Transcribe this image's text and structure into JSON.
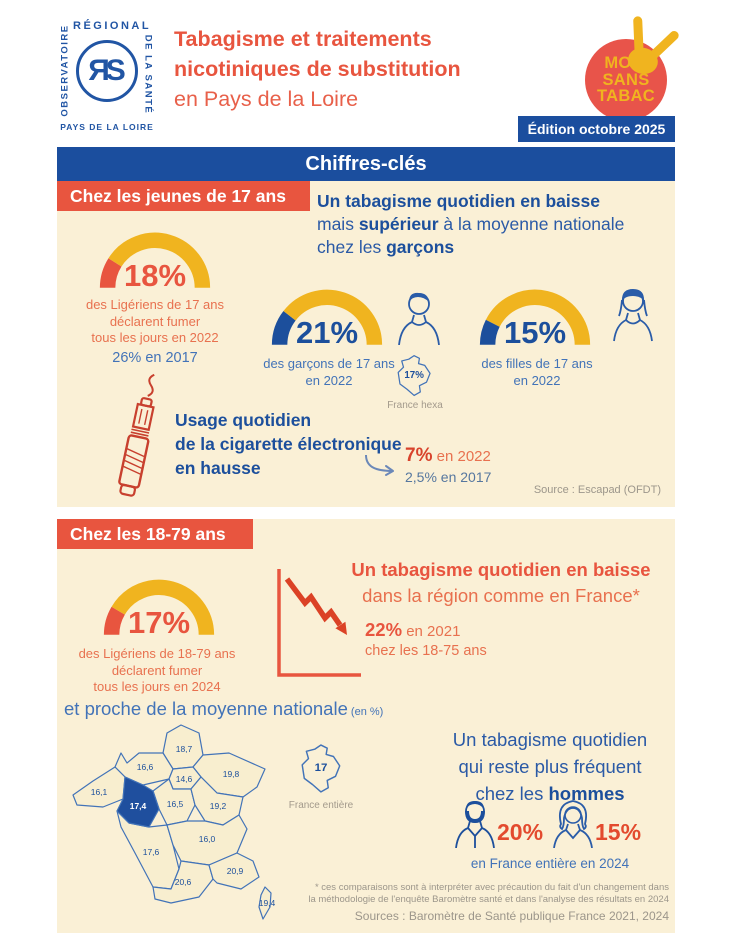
{
  "theme": {
    "cream": "#FAF0D6",
    "yellow": "#F0B41F",
    "orange": "#E8553F",
    "orange_light": "#E8714F",
    "red": "#D8432C",
    "blue_dark": "#1C4F9C",
    "blue_mid": "#4273B8",
    "gray": "#9C968B",
    "badge_red": "#E8544A",
    "logo_blue": "#2155A4"
  },
  "header": {
    "logo": {
      "top": "RÉGIONAL",
      "left": "OBSERVATOIRE",
      "right": "DE LA SANTÉ",
      "bottom": "PAYS DE LA LOIRE",
      "monogram": "ЯS"
    },
    "title_line1": "Tabagisme et traitements",
    "title_line2": "nicotiniques de substitution",
    "title_line3": "en Pays de la Loire",
    "badge": {
      "line1": "MOIS",
      "line2": "SANS",
      "line3": "TABAC"
    },
    "edition": "Édition octobre 2025"
  },
  "main_banner": "Chiffres-clés",
  "young": {
    "banner": "Chez les jeunes de 17 ans",
    "headline_html": "<b>Un tabagisme quotidien en baisse</b><br>mais <b>supérieur</b> à la moyenne nationale<br>chez les <b>garçons</b>",
    "gauge_all": {
      "value": "18%",
      "percent": 18,
      "color": "#E8553F",
      "caption1": "des Ligériens de 17 ans",
      "caption2": "déclarent fumer",
      "caption3": "tous les jours en 2022",
      "note": "26% en 2017"
    },
    "gauge_boys": {
      "value": "21%",
      "percent": 21,
      "color": "#1C4F9C",
      "caption1": "des garçons de 17 ans",
      "caption2": "en 2022"
    },
    "france_hexa": {
      "value": "17%",
      "label": "France hexa"
    },
    "gauge_girls": {
      "value": "15%",
      "percent": 15,
      "color": "#1C4F9C",
      "caption1": "des filles de 17 ans",
      "caption2": "en 2022"
    },
    "ecig": {
      "line1": "Usage quotidien",
      "line2": "de la cigarette électronique",
      "line3": "en hausse",
      "stat": "7%",
      "stat_year": " en 2022",
      "prev": "2,5% en 2017"
    },
    "source": "Source : Escapad (OFDT)"
  },
  "adults": {
    "banner": "Chez les 18-79 ans",
    "gauge": {
      "value": "17%",
      "percent": 17,
      "color": "#E8553F",
      "caption1": "des Ligériens de 18-79 ans",
      "caption2": "déclarent fumer",
      "caption3": "tous les jours en 2024"
    },
    "headline_html": "<b>Un tabagisme quotidien en baisse</b><br>dans la région comme en France*",
    "trend_stat": "22%",
    "trend_year": " en 2021",
    "trend_sub": "chez les 18-75 ans",
    "map_title": "et proche de la moyenne nationale",
    "map_title_suffix": " (en %)",
    "map": {
      "regions": [
        {
          "id": "hauts-de-france",
          "value": "18,7"
        },
        {
          "id": "normandie",
          "value": "16,6"
        },
        {
          "id": "ile-de-france",
          "value": "14,6"
        },
        {
          "id": "grand-est",
          "value": "19,8"
        },
        {
          "id": "bretagne",
          "value": "16,1"
        },
        {
          "id": "pays-de-la-loire",
          "value": "17,4"
        },
        {
          "id": "centre-val-de-loire",
          "value": "16,5"
        },
        {
          "id": "bourgogne-franche-comte",
          "value": "19,2"
        },
        {
          "id": "nouvelle-aquitaine",
          "value": "17,6"
        },
        {
          "id": "auvergne-rhone-alpes",
          "value": "16,0"
        },
        {
          "id": "occitanie",
          "value": "20,6"
        },
        {
          "id": "provence-alpes-cote-d-azur",
          "value": "20,9"
        },
        {
          "id": "corse",
          "value": "19,4"
        }
      ]
    },
    "france_entiere": {
      "value": "17",
      "label": "France entière"
    },
    "right_headline_html": "Un tabagisme quotidien<br>qui reste plus fréquent<br>chez les <b>hommes</b>",
    "men_value": "20%",
    "women_value": "15%",
    "gender_caption": "en France entière en 2024",
    "footnote_line1": "* ces comparaisons sont à interpréter avec précaution du fait d'un changement dans",
    "footnote_line2": "la méthodologie de l'enquête Baromètre santé et dans l'analyse des résultats en 2024",
    "footnote_line3": "Sources : Baromètre de Santé publique France 2021, 2024"
  },
  "chart_data": [
    {
      "type": "gauge",
      "title": "Tabagisme quotidien des Ligériens de 17 ans (2022)",
      "value_pct": 18,
      "previous": {
        "year": 2017,
        "value_pct": 26
      }
    },
    {
      "type": "gauge",
      "title": "Tabagisme quotidien des garçons de 17 ans (2022)",
      "value_pct": 21,
      "france_hexa_pct": 17
    },
    {
      "type": "gauge",
      "title": "Tabagisme quotidien des filles de 17 ans (2022)",
      "value_pct": 15
    },
    {
      "type": "line",
      "title": "Usage quotidien de la cigarette électronique chez les 17 ans (en %)",
      "x": [
        2017,
        2022
      ],
      "values": [
        2.5,
        7
      ]
    },
    {
      "type": "gauge",
      "title": "Tabagisme quotidien des Ligériens de 18-79 ans (2024)",
      "value_pct": 17,
      "previous": {
        "year": 2021,
        "value_pct": 22,
        "note": "chez les 18-75 ans"
      }
    },
    {
      "type": "map",
      "title": "Tabagisme quotidien par région (en %)",
      "categories": [
        "Hauts-de-France",
        "Normandie",
        "Île-de-France",
        "Grand Est",
        "Bretagne",
        "Pays de la Loire",
        "Centre-Val de Loire",
        "Bourgogne-Franche-Comté",
        "Nouvelle-Aquitaine",
        "Auvergne-Rhône-Alpes",
        "Occitanie",
        "Provence-Alpes-Côte d'Azur",
        "Corse"
      ],
      "values": [
        18.7,
        16.6,
        14.6,
        19.8,
        16.1,
        17.4,
        16.5,
        19.2,
        17.6,
        16.0,
        20.6,
        20.9,
        19.4
      ],
      "france_entiere": 17
    },
    {
      "type": "bar",
      "title": "Tabagisme quotidien par sexe, France entière (2024)",
      "categories": [
        "hommes",
        "femmes"
      ],
      "values": [
        20,
        15
      ]
    }
  ]
}
